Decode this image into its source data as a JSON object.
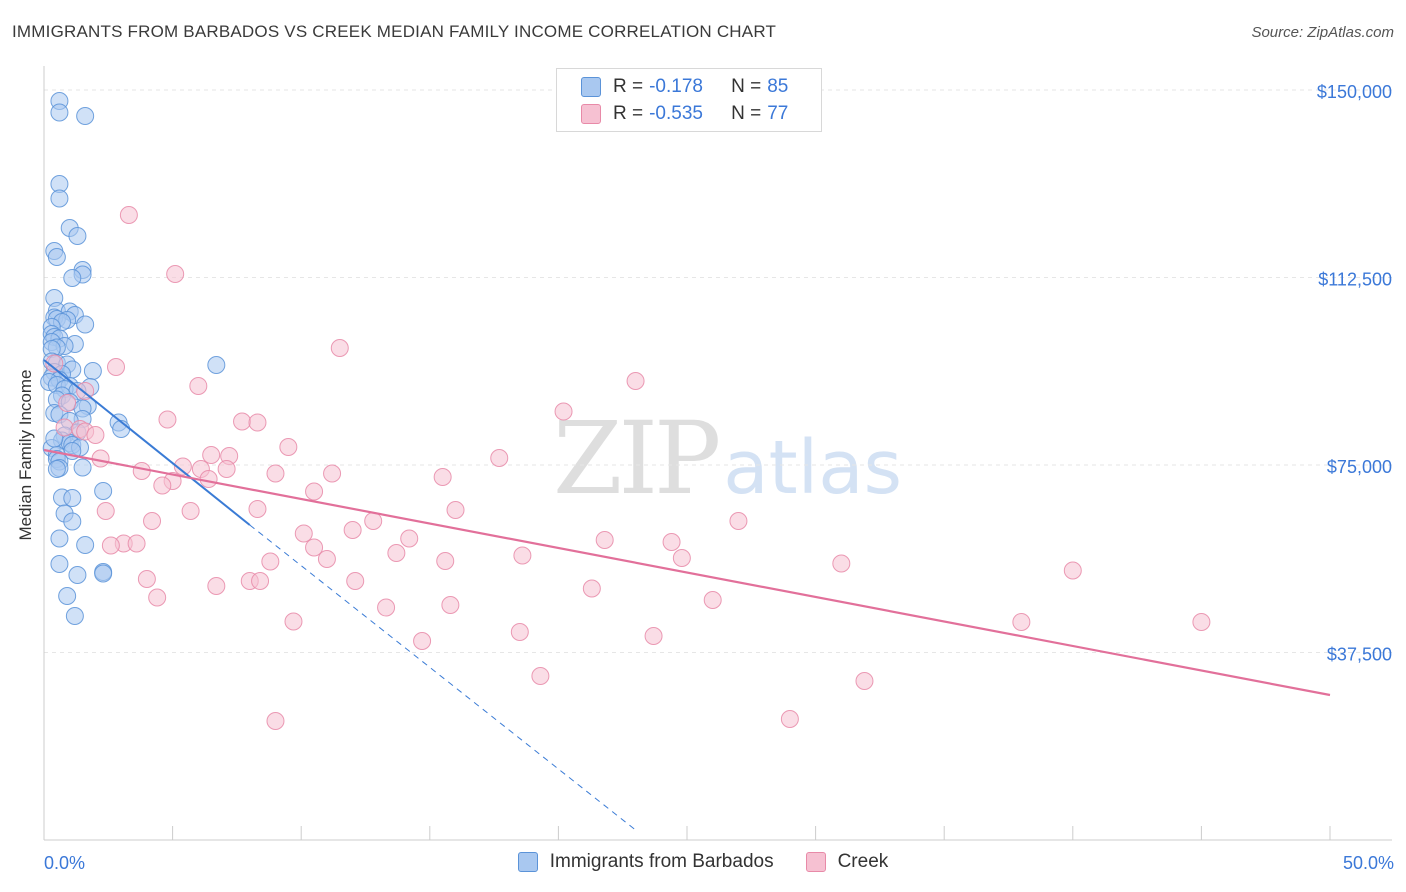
{
  "header": {
    "title": "IMMIGRANTS FROM BARBADOS VS CREEK MEDIAN FAMILY INCOME CORRELATION CHART",
    "source": "Source: ZipAtlas.com"
  },
  "watermark": {
    "zip": "ZIP",
    "atlas": "atlas"
  },
  "legend": {
    "series": [
      {
        "r_label": "R =",
        "r_value": "-0.178",
        "n_label": "N =",
        "n_value": "85"
      },
      {
        "r_label": "R =",
        "r_value": "-0.535",
        "n_label": "N =",
        "n_value": "77"
      }
    ]
  },
  "chart_data": {
    "type": "scatter",
    "title": "IMMIGRANTS FROM BARBADOS VS CREEK MEDIAN FAMILY INCOME CORRELATION CHART",
    "xlabel": "",
    "ylabel": "Median Family Income",
    "xlim": [
      0,
      50
    ],
    "ylim": [
      0,
      156000
    ],
    "x_tick_labels": [
      "0.0%",
      "50.0%"
    ],
    "y_ticks": [
      37500,
      75000,
      112500,
      150000
    ],
    "y_tick_labels": [
      "$37,500",
      "$75,000",
      "$112,500",
      "$150,000"
    ],
    "grid": true,
    "colors": {
      "blue_fill": "#a9c8f0",
      "blue_stroke": "#5b93d8",
      "blue_line": "#3a7bd5",
      "pink_fill": "#f6c1d2",
      "pink_stroke": "#e88aa8",
      "pink_line": "#e2709a",
      "tick_label": "#3b78d8",
      "grid": "#e6e6e6",
      "axis": "#cccccc"
    },
    "series": [
      {
        "name": "Immigrants from Barbados",
        "r": -0.178,
        "n": 85,
        "trend": {
          "x": [
            0.0,
            8.0
          ],
          "y": [
            96000,
            63000
          ],
          "dashed_to": {
            "x": 23.0,
            "y": 2000
          }
        },
        "points": [
          [
            0.6,
            147800
          ],
          [
            0.6,
            145500
          ],
          [
            1.6,
            144800
          ],
          [
            0.6,
            131200
          ],
          [
            0.6,
            128300
          ],
          [
            1.0,
            122400
          ],
          [
            1.3,
            120800
          ],
          [
            0.4,
            117800
          ],
          [
            0.5,
            116600
          ],
          [
            1.5,
            114000
          ],
          [
            1.5,
            113100
          ],
          [
            1.1,
            112400
          ],
          [
            0.4,
            108400
          ],
          [
            0.5,
            105800
          ],
          [
            1.0,
            105700
          ],
          [
            1.2,
            105000
          ],
          [
            0.4,
            104500
          ],
          [
            0.5,
            104200
          ],
          [
            0.9,
            104000
          ],
          [
            0.7,
            103600
          ],
          [
            1.6,
            103100
          ],
          [
            0.3,
            102600
          ],
          [
            0.3,
            101200
          ],
          [
            0.4,
            100600
          ],
          [
            0.6,
            100300
          ],
          [
            0.3,
            99600
          ],
          [
            1.2,
            99200
          ],
          [
            0.8,
            98800
          ],
          [
            0.5,
            98500
          ],
          [
            0.3,
            98200
          ],
          [
            0.3,
            95700
          ],
          [
            0.5,
            95400
          ],
          [
            0.9,
            95100
          ],
          [
            6.7,
            95000
          ],
          [
            1.1,
            94100
          ],
          [
            1.9,
            93800
          ],
          [
            0.4,
            93600
          ],
          [
            0.7,
            93200
          ],
          [
            0.3,
            92500
          ],
          [
            0.6,
            92000
          ],
          [
            0.2,
            91600
          ],
          [
            0.5,
            91000
          ],
          [
            1.0,
            90800
          ],
          [
            1.8,
            90600
          ],
          [
            0.8,
            90200
          ],
          [
            1.3,
            89800
          ],
          [
            0.7,
            88900
          ],
          [
            0.5,
            88100
          ],
          [
            1.0,
            87600
          ],
          [
            1.7,
            86800
          ],
          [
            1.5,
            86300
          ],
          [
            0.4,
            85400
          ],
          [
            0.6,
            85100
          ],
          [
            1.5,
            84200
          ],
          [
            1.0,
            83800
          ],
          [
            2.9,
            83500
          ],
          [
            3.0,
            82200
          ],
          [
            1.3,
            81500
          ],
          [
            0.8,
            80900
          ],
          [
            0.7,
            79900
          ],
          [
            1.0,
            79400
          ],
          [
            1.1,
            79000
          ],
          [
            1.4,
            78500
          ],
          [
            0.3,
            78400
          ],
          [
            1.1,
            77800
          ],
          [
            0.5,
            77000
          ],
          [
            0.5,
            76200
          ],
          [
            0.6,
            75700
          ],
          [
            1.5,
            74500
          ],
          [
            0.6,
            74400
          ],
          [
            0.5,
            74200
          ],
          [
            2.3,
            69800
          ],
          [
            0.7,
            68500
          ],
          [
            1.1,
            68400
          ],
          [
            0.8,
            65300
          ],
          [
            1.1,
            63700
          ],
          [
            0.6,
            60300
          ],
          [
            1.6,
            59000
          ],
          [
            0.6,
            55200
          ],
          [
            2.3,
            53600
          ],
          [
            2.3,
            53300
          ],
          [
            1.3,
            53000
          ],
          [
            0.9,
            48800
          ],
          [
            1.2,
            44800
          ],
          [
            0.4,
            80300
          ]
        ]
      },
      {
        "name": "Creek",
        "r": -0.535,
        "n": 77,
        "trend": {
          "x": [
            0.0,
            50.0
          ],
          "y": [
            78000,
            29000
          ]
        },
        "points": [
          [
            3.3,
            125000
          ],
          [
            5.1,
            113200
          ],
          [
            11.5,
            98400
          ],
          [
            0.4,
            95300
          ],
          [
            2.8,
            94600
          ],
          [
            23.0,
            91800
          ],
          [
            6.0,
            90800
          ],
          [
            1.6,
            89800
          ],
          [
            0.9,
            87400
          ],
          [
            20.2,
            85700
          ],
          [
            4.8,
            84100
          ],
          [
            7.7,
            83700
          ],
          [
            8.3,
            83500
          ],
          [
            0.8,
            82500
          ],
          [
            1.4,
            82200
          ],
          [
            1.6,
            81700
          ],
          [
            2.0,
            81000
          ],
          [
            9.5,
            78600
          ],
          [
            6.5,
            77000
          ],
          [
            7.2,
            76800
          ],
          [
            2.2,
            76300
          ],
          [
            17.7,
            76400
          ],
          [
            5.4,
            74700
          ],
          [
            6.1,
            74200
          ],
          [
            7.1,
            74200
          ],
          [
            3.8,
            73800
          ],
          [
            9.0,
            73300
          ],
          [
            11.2,
            73300
          ],
          [
            15.5,
            72600
          ],
          [
            6.4,
            72200
          ],
          [
            5.0,
            71800
          ],
          [
            4.6,
            70900
          ],
          [
            10.5,
            69700
          ],
          [
            8.3,
            66200
          ],
          [
            16.0,
            66000
          ],
          [
            2.4,
            65800
          ],
          [
            5.7,
            65800
          ],
          [
            4.2,
            63800
          ],
          [
            12.8,
            63800
          ],
          [
            27.0,
            63800
          ],
          [
            10.1,
            61300
          ],
          [
            14.2,
            60300
          ],
          [
            21.8,
            60000
          ],
          [
            24.4,
            59600
          ],
          [
            3.1,
            59300
          ],
          [
            3.6,
            59300
          ],
          [
            2.6,
            58900
          ],
          [
            10.5,
            58500
          ],
          [
            13.7,
            57400
          ],
          [
            18.6,
            56900
          ],
          [
            24.8,
            56400
          ],
          [
            11.0,
            56200
          ],
          [
            15.6,
            55800
          ],
          [
            8.8,
            55700
          ],
          [
            31.0,
            55300
          ],
          [
            40.0,
            53900
          ],
          [
            4.0,
            52200
          ],
          [
            12.1,
            51800
          ],
          [
            8.0,
            51800
          ],
          [
            8.4,
            51800
          ],
          [
            6.7,
            50800
          ],
          [
            21.3,
            50300
          ],
          [
            4.4,
            48500
          ],
          [
            15.8,
            47000
          ],
          [
            13.3,
            46500
          ],
          [
            9.7,
            43700
          ],
          [
            38.0,
            43600
          ],
          [
            45.0,
            43600
          ],
          [
            18.5,
            41600
          ],
          [
            23.7,
            40800
          ],
          [
            14.7,
            39800
          ],
          [
            19.3,
            32800
          ],
          [
            31.9,
            31800
          ],
          [
            29.0,
            24200
          ],
          [
            9.0,
            23800
          ],
          [
            12.0,
            62000
          ],
          [
            26.0,
            48000
          ]
        ]
      }
    ]
  },
  "bottom_legend": {
    "items": [
      "Immigrants from Barbados",
      "Creek"
    ]
  },
  "axis": {
    "y_title": "Median Family Income",
    "x_left": "0.0%",
    "x_right": "50.0%"
  }
}
